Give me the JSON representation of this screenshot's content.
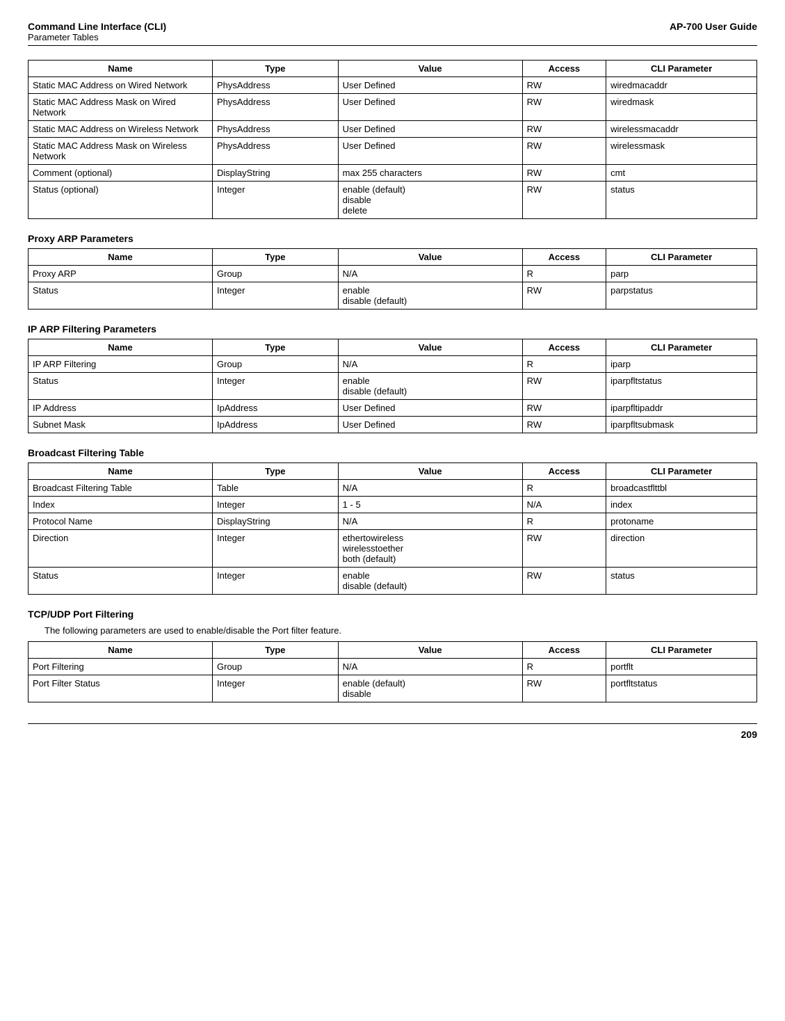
{
  "header": {
    "left_top": "Command Line Interface (CLI)",
    "left_sub": "Parameter Tables",
    "right": "AP-700 User Guide"
  },
  "table1": {
    "headers": [
      "Name",
      "Type",
      "Value",
      "Access",
      "CLI Parameter"
    ],
    "rows": [
      [
        "Static MAC Address on Wired Network",
        "PhysAddress",
        "User Defined",
        "RW",
        "wiredmacaddr"
      ],
      [
        "Static MAC Address Mask on Wired Network",
        "PhysAddress",
        "User Defined",
        "RW",
        "wiredmask"
      ],
      [
        "Static MAC Address on Wireless Network",
        "PhysAddress",
        "User Defined",
        "RW",
        "wirelessmacaddr"
      ],
      [
        "Static MAC Address Mask on Wireless Network",
        "PhysAddress",
        "User Defined",
        "RW",
        "wirelessmask"
      ],
      [
        "Comment (optional)",
        "DisplayString",
        "max 255 characters",
        "RW",
        "cmt"
      ],
      [
        "Status (optional)",
        "Integer",
        "enable (default)\ndisable\ndelete",
        "RW",
        "status"
      ]
    ]
  },
  "section2_title": "Proxy ARP Parameters",
  "table2": {
    "headers": [
      "Name",
      "Type",
      "Value",
      "Access",
      "CLI Parameter"
    ],
    "rows": [
      [
        "Proxy ARP",
        "Group",
        "N/A",
        "R",
        "parp"
      ],
      [
        "Status",
        "Integer",
        "enable\ndisable (default)",
        "RW",
        "parpstatus"
      ]
    ]
  },
  "section3_title": "IP ARP Filtering Parameters",
  "table3": {
    "headers": [
      "Name",
      "Type",
      "Value",
      "Access",
      "CLI Parameter"
    ],
    "rows": [
      [
        "IP ARP Filtering",
        "Group",
        "N/A",
        "R",
        "iparp"
      ],
      [
        "Status",
        "Integer",
        "enable\ndisable (default)",
        "RW",
        "iparpfltstatus"
      ],
      [
        "IP Address",
        "IpAddress",
        "User Defined",
        "RW",
        "iparpfltipaddr"
      ],
      [
        "Subnet Mask",
        "IpAddress",
        "User Defined",
        "RW",
        "iparpfltsubmask"
      ]
    ]
  },
  "section4_title": "Broadcast Filtering Table",
  "table4": {
    "headers": [
      "Name",
      "Type",
      "Value",
      "Access",
      "CLI Parameter"
    ],
    "rows": [
      [
        "Broadcast Filtering Table",
        "Table",
        "N/A",
        "R",
        "broadcastflttbl"
      ],
      [
        "Index",
        "Integer",
        "1 - 5",
        "N/A",
        "index"
      ],
      [
        "Protocol Name",
        "DisplayString",
        "N/A",
        "R",
        "protoname"
      ],
      [
        "Direction",
        "Integer",
        "ethertowireless\nwirelesstoether\nboth (default)",
        "RW",
        "direction"
      ],
      [
        "Status",
        "Integer",
        "enable\ndisable (default)",
        "RW",
        "status"
      ]
    ]
  },
  "section5_title": "TCP/UDP Port Filtering",
  "section5_body": "The following parameters are used to enable/disable the Port filter feature.",
  "table5": {
    "headers": [
      "Name",
      "Type",
      "Value",
      "Access",
      "CLI Parameter"
    ],
    "rows": [
      [
        "Port Filtering",
        "Group",
        "N/A",
        "R",
        "portflt"
      ],
      [
        "Port Filter Status",
        "Integer",
        "enable (default)\ndisable",
        "RW",
        "portfltstatus"
      ]
    ]
  },
  "page_number": "209"
}
